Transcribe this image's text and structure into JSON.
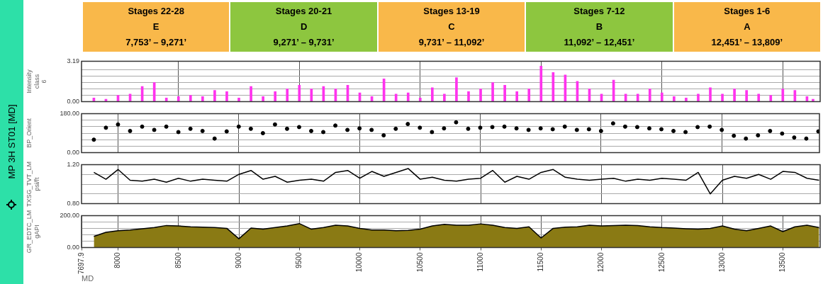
{
  "chart_data": [
    {
      "type": "other",
      "colors": [
        "#f9b84a",
        "#8dc63f",
        "#f9b84a",
        "#8dc63f",
        "#f9b84a"
      ],
      "annotations": [
        "Stages 22-28\nE\n7,753’ – 9,271’",
        "Stages 20-21\nD\n9,271’ – 9,731’",
        "Stages 13-19\nC\n9,731’ – 11,092’",
        "Stages 7-12\nB\n11,092’ – 12,451’",
        "Stages 1-6\nA\n12,451’ – 13,809’"
      ]
    },
    {
      "type": "bar",
      "ylabel": "Intensity class 6",
      "color": "#ff33ee",
      "grid": true,
      "tick_labels": "y",
      "xlim": [
        7697.9,
        13809
      ],
      "xticks": [
        8000,
        9000,
        10000,
        11000,
        12000,
        13000
      ],
      "ylim": [
        0,
        3.19
      ],
      "yticks": [
        {
          "value": 0,
          "label": "0.00"
        },
        {
          "value": 0.5,
          "label": null
        },
        {
          "value": 1,
          "label": null
        },
        {
          "value": 1.5,
          "label": null
        },
        {
          "value": 2,
          "label": null
        },
        {
          "value": 2.5,
          "label": null
        },
        {
          "value": 3.19,
          "label": "3.19"
        }
      ],
      "x": [
        7800,
        7900,
        8000,
        8100,
        8200,
        8300,
        8400,
        8500,
        8600,
        8700,
        8800,
        8900,
        9000,
        9100,
        9200,
        9300,
        9400,
        9500,
        9600,
        9700,
        9800,
        9900,
        10000,
        10100,
        10200,
        10300,
        10400,
        10500,
        10600,
        10700,
        10800,
        10900,
        11000,
        11100,
        11200,
        11300,
        11400,
        11500,
        11600,
        11700,
        11800,
        11900,
        12000,
        12100,
        12200,
        12300,
        12400,
        12500,
        12600,
        12700,
        12800,
        12900,
        13000,
        13100,
        13200,
        13300,
        13400,
        13500,
        13600,
        13700,
        13750
      ],
      "values": [
        0.3,
        0.2,
        0.5,
        0.6,
        1.2,
        1.5,
        0.3,
        0.4,
        0.5,
        0.4,
        0.9,
        0.8,
        0.3,
        1.2,
        0.4,
        0.8,
        1.0,
        1.3,
        1.0,
        1.2,
        1.0,
        1.3,
        0.7,
        0.4,
        1.8,
        0.6,
        0.7,
        0.3,
        1.1,
        0.6,
        1.9,
        0.8,
        1.0,
        1.5,
        1.3,
        0.8,
        1.0,
        2.8,
        2.3,
        2.1,
        1.6,
        1.0,
        0.6,
        1.7,
        0.6,
        0.6,
        1.0,
        0.7,
        0.4,
        0.3,
        0.6,
        1.1,
        0.6,
        1.0,
        0.9,
        0.6,
        0.5,
        1.0,
        0.9,
        0.4,
        0.2
      ]
    },
    {
      "type": "scatter",
      "title": "MP 3H ST01 [MD]",
      "ylabel": "BP_Orient",
      "color": "#000000",
      "marker": "circle",
      "grid": true,
      "tick_labels": "y",
      "xlim": [
        7697.9,
        13809
      ],
      "xticks": [
        8000,
        9000,
        10000,
        11000,
        12000,
        13000
      ],
      "ylim": [
        0,
        180
      ],
      "yticks": [
        {
          "value": 0,
          "label": "0.00"
        },
        {
          "value": 30,
          "label": null
        },
        {
          "value": 60,
          "label": null
        },
        {
          "value": 90,
          "label": null
        },
        {
          "value": 120,
          "label": null
        },
        {
          "value": 150,
          "label": null
        },
        {
          "value": 180,
          "label": "180.00"
        }
      ],
      "x": [
        7800,
        7900,
        8000,
        8100,
        8200,
        8300,
        8400,
        8500,
        8600,
        8700,
        8800,
        8900,
        9000,
        9100,
        9200,
        9300,
        9400,
        9500,
        9600,
        9700,
        9800,
        9900,
        10000,
        10100,
        10200,
        10300,
        10400,
        10500,
        10600,
        10700,
        10800,
        10900,
        11000,
        11100,
        11200,
        11300,
        11400,
        11500,
        11600,
        11700,
        11800,
        11900,
        12000,
        12100,
        12200,
        12300,
        12400,
        12500,
        12600,
        12700,
        12800,
        12900,
        13000,
        13100,
        13200,
        13300,
        13400,
        13500,
        13600,
        13700,
        13800
      ],
      "values": [
        60,
        115,
        130,
        100,
        120,
        105,
        120,
        95,
        110,
        100,
        65,
        98,
        120,
        110,
        90,
        130,
        110,
        118,
        100,
        95,
        125,
        105,
        112,
        105,
        80,
        110,
        132,
        115,
        95,
        112,
        140,
        110,
        115,
        118,
        120,
        112,
        105,
        112,
        108,
        120,
        105,
        108,
        100,
        135,
        120,
        118,
        112,
        108,
        100,
        95,
        118,
        120,
        105,
        78,
        65,
        80,
        100,
        88,
        70,
        65,
        98
      ]
    },
    {
      "type": "line",
      "ylabel": "TXSG_TVT_LM psi/ft",
      "color": "#000000",
      "grid": true,
      "tick_labels": "y",
      "xlim": [
        7697.9,
        13809
      ],
      "xticks": [
        8000,
        9000,
        10000,
        11000,
        12000,
        13000
      ],
      "ylim": [
        0.8,
        1.2
      ],
      "yticks": [
        {
          "value": 0.8,
          "label": "0.80"
        },
        {
          "value": 0.9,
          "label": null
        },
        {
          "value": 1.0,
          "label": null
        },
        {
          "value": 1.1,
          "label": null
        },
        {
          "value": 1.2,
          "label": "1.20"
        }
      ],
      "x": [
        7800,
        7900,
        8000,
        8100,
        8200,
        8300,
        8400,
        8500,
        8600,
        8700,
        8800,
        8900,
        9000,
        9100,
        9200,
        9300,
        9400,
        9500,
        9600,
        9700,
        9800,
        9900,
        10000,
        10100,
        10200,
        10300,
        10400,
        10500,
        10600,
        10700,
        10800,
        10900,
        11000,
        11100,
        11200,
        11300,
        11400,
        11500,
        11600,
        11700,
        11800,
        11900,
        12000,
        12100,
        12200,
        12300,
        12400,
        12500,
        12600,
        12700,
        12800,
        12900,
        13000,
        13100,
        13200,
        13300,
        13400,
        13500,
        13600,
        13700,
        13800
      ],
      "values": [
        1.12,
        1.05,
        1.15,
        1.04,
        1.03,
        1.05,
        1.02,
        1.06,
        1.03,
        1.05,
        1.04,
        1.03,
        1.1,
        1.14,
        1.05,
        1.08,
        1.02,
        1.04,
        1.05,
        1.03,
        1.12,
        1.14,
        1.06,
        1.13,
        1.08,
        1.12,
        1.16,
        1.05,
        1.07,
        1.04,
        1.03,
        1.05,
        1.06,
        1.14,
        1.02,
        1.08,
        1.05,
        1.12,
        1.15,
        1.07,
        1.05,
        1.04,
        1.05,
        1.06,
        1.03,
        1.05,
        1.04,
        1.06,
        1.05,
        1.04,
        1.12,
        0.9,
        1.04,
        1.08,
        1.06,
        1.1,
        1.05,
        1.13,
        1.12,
        1.06,
        1.04
      ]
    },
    {
      "type": "area",
      "ylabel": "GR_EDTC_LM gAPI",
      "xlabel": "MD",
      "color": "#8a7a14",
      "grid": true,
      "xlim": [
        7697.9,
        13809
      ],
      "xticks": [
        {
          "value": 7697.9,
          "label": "7697.9"
        },
        8000,
        8500,
        9000,
        9500,
        10000,
        10500,
        11000,
        11500,
        12000,
        12500,
        13000,
        13500
      ],
      "ylim": [
        0,
        200
      ],
      "yticks": [
        {
          "value": 0,
          "label": "0.00"
        },
        {
          "value": 40,
          "label": null
        },
        {
          "value": 80,
          "label": null
        },
        {
          "value": 120,
          "label": null
        },
        {
          "value": 160,
          "label": null
        },
        {
          "value": 200,
          "label": "200.00"
        }
      ],
      "x": [
        7800,
        7900,
        8000,
        8100,
        8200,
        8300,
        8400,
        8500,
        8600,
        8700,
        8800,
        8900,
        9000,
        9100,
        9200,
        9300,
        9400,
        9500,
        9600,
        9700,
        9800,
        9900,
        10000,
        10100,
        10200,
        10300,
        10400,
        10500,
        10600,
        10700,
        10800,
        10900,
        11000,
        11100,
        11200,
        11300,
        11400,
        11500,
        11600,
        11700,
        11800,
        11900,
        12000,
        12100,
        12200,
        12300,
        12400,
        12500,
        12600,
        12700,
        12800,
        12900,
        13000,
        13100,
        13200,
        13300,
        13400,
        13500,
        13600,
        13700,
        13800
      ],
      "values": [
        70,
        95,
        105,
        110,
        118,
        125,
        138,
        135,
        130,
        128,
        125,
        120,
        55,
        122,
        115,
        125,
        135,
        150,
        115,
        125,
        140,
        135,
        120,
        110,
        110,
        105,
        108,
        115,
        135,
        145,
        140,
        140,
        148,
        140,
        125,
        120,
        130,
        60,
        120,
        128,
        130,
        140,
        135,
        138,
        140,
        138,
        130,
        125,
        122,
        118,
        115,
        120,
        135,
        115,
        105,
        120,
        135,
        100,
        130,
        140,
        125
      ]
    }
  ]
}
